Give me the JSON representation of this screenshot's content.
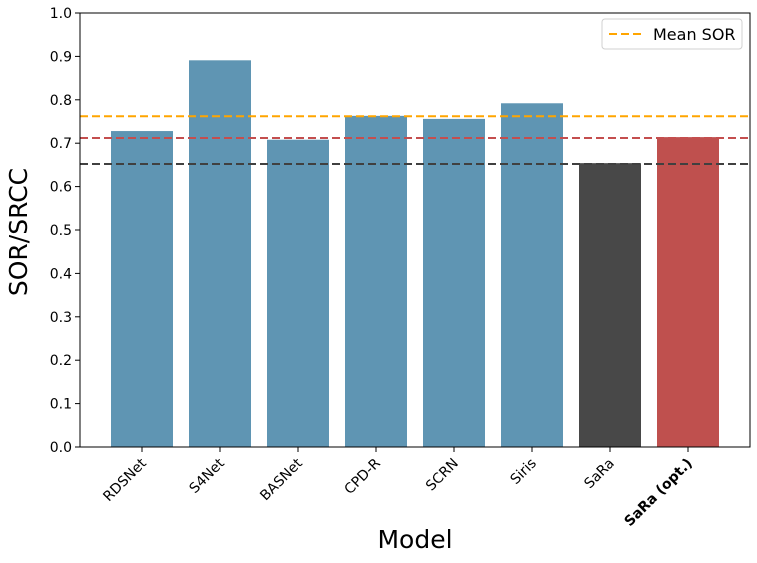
{
  "chart_data": {
    "type": "bar",
    "xlabel": "Model",
    "ylabel": "SOR/SRCC",
    "ylim": [
      0,
      1.0
    ],
    "yticks": [
      "0.0",
      "0.1",
      "0.2",
      "0.3",
      "0.4",
      "0.5",
      "0.6",
      "0.7",
      "0.8",
      "0.9",
      "1.0"
    ],
    "categories": [
      "RDSNet",
      "S4Net",
      "BASNet",
      "CPD-R",
      "SCRN",
      "Siris",
      "SaRa",
      "SaRa (opt.)"
    ],
    "values": [
      0.728,
      0.891,
      0.708,
      0.763,
      0.756,
      0.792,
      0.654,
      0.714
    ],
    "bar_colors": [
      "#5f95b3",
      "#5f95b3",
      "#5f95b3",
      "#5f95b3",
      "#5f95b3",
      "#5f95b3",
      "#484848",
      "#bf504e"
    ],
    "bold_categories": [
      "SaRa (opt.)"
    ],
    "reference_lines": [
      {
        "label": "Mean SOR",
        "value": 0.762,
        "color": "#ffa500",
        "in_legend": true
      },
      {
        "label": "",
        "value": 0.712,
        "color": "#c44e4e",
        "in_legend": false
      },
      {
        "label": "",
        "value": 0.652,
        "color": "#404040",
        "in_legend": false
      }
    ],
    "legend_position": "top-right",
    "grid": false
  }
}
